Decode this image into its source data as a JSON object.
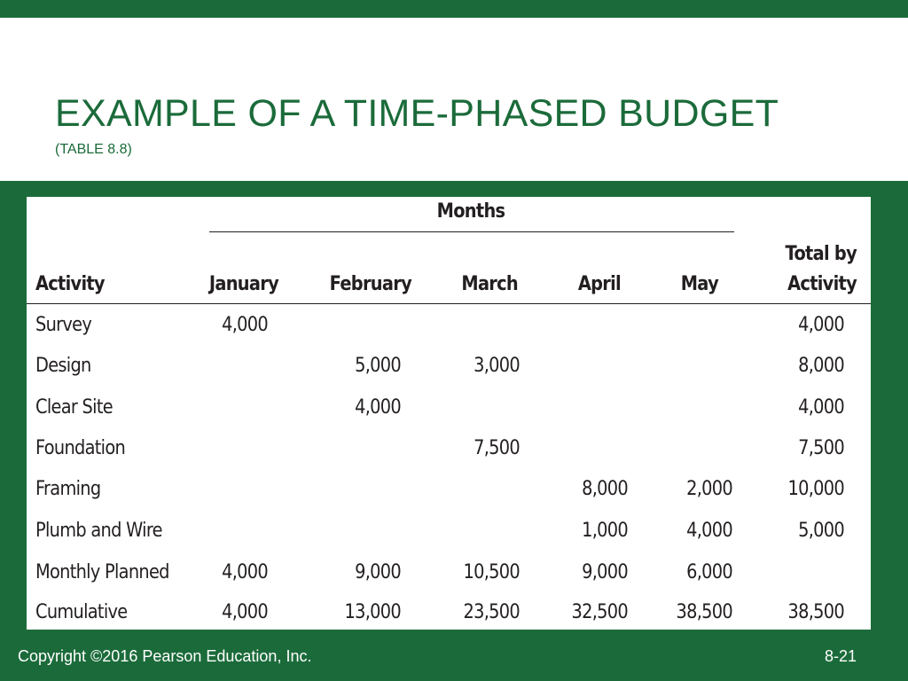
{
  "slide": {
    "title": "EXAMPLE OF A TIME-PHASED BUDGET",
    "subtitle": "(TABLE 8.8)"
  },
  "table": {
    "group_header": "Months",
    "columns": [
      "Activity",
      "January",
      "February",
      "March",
      "April",
      "May"
    ],
    "total_header": [
      "Total by",
      "Activity"
    ],
    "rows": [
      [
        "Survey",
        "4,000",
        "",
        "",
        "",
        "",
        "4,000"
      ],
      [
        "Design",
        "",
        "5,000",
        "3,000",
        "",
        "",
        "8,000"
      ],
      [
        "Clear Site",
        "",
        "4,000",
        "",
        "",
        "",
        "4,000"
      ],
      [
        "Foundation",
        "",
        "",
        "7,500",
        "",
        "",
        "7,500"
      ],
      [
        "Framing",
        "",
        "",
        "",
        "8,000",
        "2,000",
        "10,000"
      ],
      [
        "Plumb and Wire",
        "",
        "",
        "",
        "1,000",
        "4,000",
        "5,000"
      ],
      [
        "Monthly Planned",
        "4,000",
        "9,000",
        "10,500",
        "9,000",
        "6,000",
        ""
      ],
      [
        "Cumulative",
        "4,000",
        "13,000",
        "23,500",
        "32,500",
        "38,500",
        "38,500"
      ]
    ]
  },
  "footer": {
    "copyright": "Copyright ©2016 Pearson Education, Inc.",
    "page_number": "8-21"
  },
  "colors": {
    "brand_green": "#1b6b3a",
    "text_dark": "#231f20"
  }
}
